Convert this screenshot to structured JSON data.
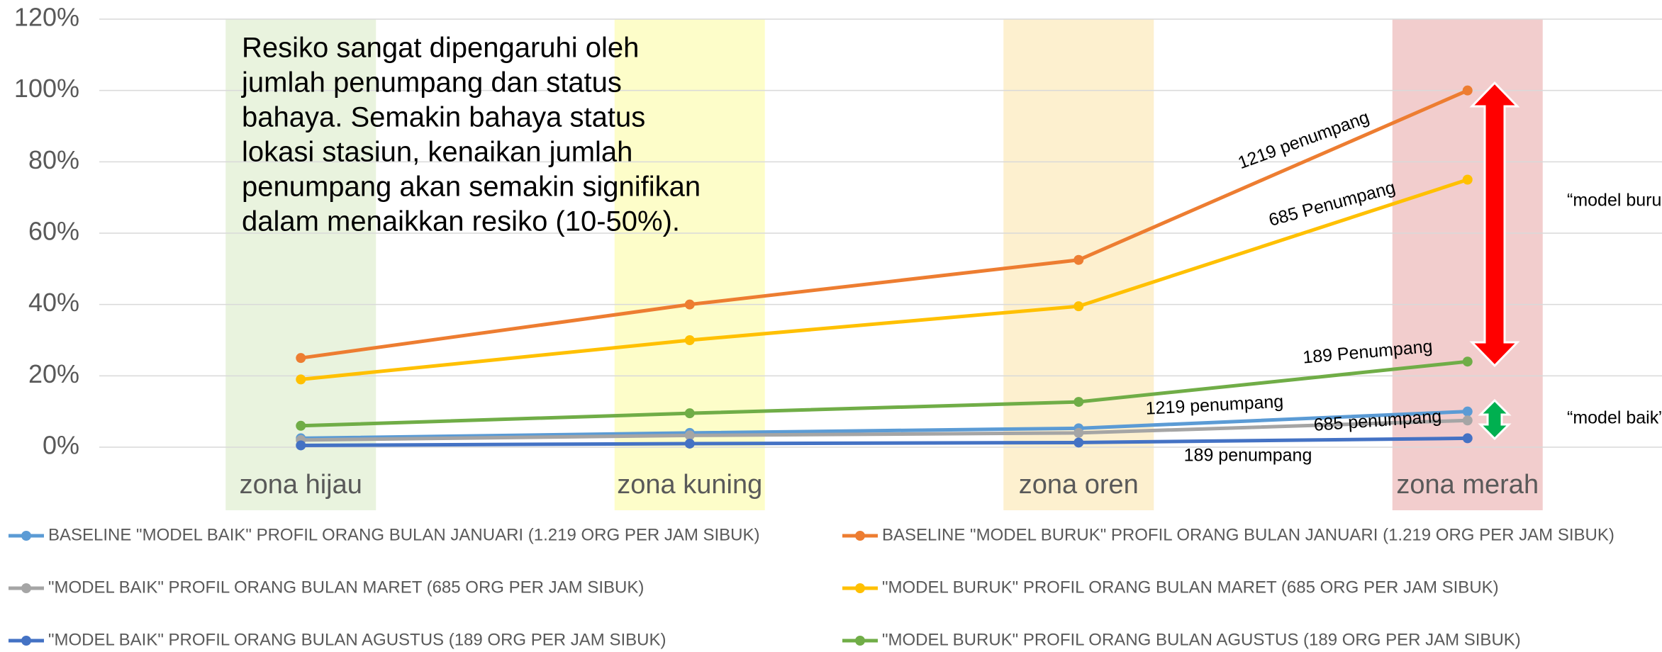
{
  "chart_data": {
    "type": "line",
    "categories": [
      "zona hijau",
      "zona kuning",
      "zona oren",
      "zona merah"
    ],
    "zone_colors": [
      "#e9f3de",
      "#fdfdc9",
      "#fdf0cf",
      "#f2cdcd"
    ],
    "series": [
      {
        "name": "BASELINE \"MODEL BAIK\" PROFIL ORANG BULAN JANUARI (1.219 ORG PER JAM SIBUK)",
        "color": "#5b9bd5",
        "values": [
          2.5,
          4,
          5.3,
          10
        ]
      },
      {
        "name": "BASELINE \"MODEL BURUK\" PROFIL ORANG BULAN JANUARI (1.219 ORG PER JAM SIBUK)",
        "color": "#ed7d31",
        "values": [
          25,
          40,
          52.5,
          100
        ]
      },
      {
        "name": "\"MODEL BAIK\" PROFIL ORANG BULAN MARET (685 ORG PER JAM SIBUK)",
        "color": "#a5a5a5",
        "values": [
          2,
          3.3,
          4,
          7.5
        ]
      },
      {
        "name": "\"MODEL BURUK\" PROFIL ORANG BULAN MARET (685 ORG PER JAM SIBUK)",
        "color": "#ffc000",
        "values": [
          19,
          30,
          39.5,
          75
        ]
      },
      {
        "name": "\"MODEL BAIK\" PROFIL ORANG BULAN AGUSTUS (189 ORG PER JAM SIBUK)",
        "color": "#4472c4",
        "values": [
          0.5,
          1,
          1.3,
          2.5
        ]
      },
      {
        "name": "\"MODEL BURUK\" PROFIL ORANG BULAN AGUSTUS (189 ORG PER JAM SIBUK)",
        "color": "#70ad47",
        "values": [
          6,
          9.5,
          12.7,
          24
        ]
      }
    ],
    "ylim": [
      0,
      120
    ],
    "yticks": [
      {
        "value": 0,
        "label": "0%"
      },
      {
        "value": 20,
        "label": "20%"
      },
      {
        "value": 40,
        "label": "40%"
      },
      {
        "value": 60,
        "label": "60%"
      },
      {
        "value": 80,
        "label": "80%"
      },
      {
        "value": 100,
        "label": "100%"
      },
      {
        "value": 120,
        "label": "120%"
      }
    ],
    "grid": true,
    "legend": "bottom",
    "note_lines": [
      "Resiko sangat dipengaruhi oleh",
      "jumlah penumpang dan status",
      "bahaya. Semakin bahaya status",
      "lokasi stasiun, kenaikan jumlah",
      "penumpang akan semakin signifikan",
      "dalam menaikkan resiko (10-50%)."
    ],
    "annotations": [
      "1219 penumpang",
      "685 Penumpang",
      "189 Penumpang",
      "1219 penumpang",
      "685 penumpang",
      "189 penumpang",
      "“model buruk”",
      "“model baik”"
    ]
  }
}
